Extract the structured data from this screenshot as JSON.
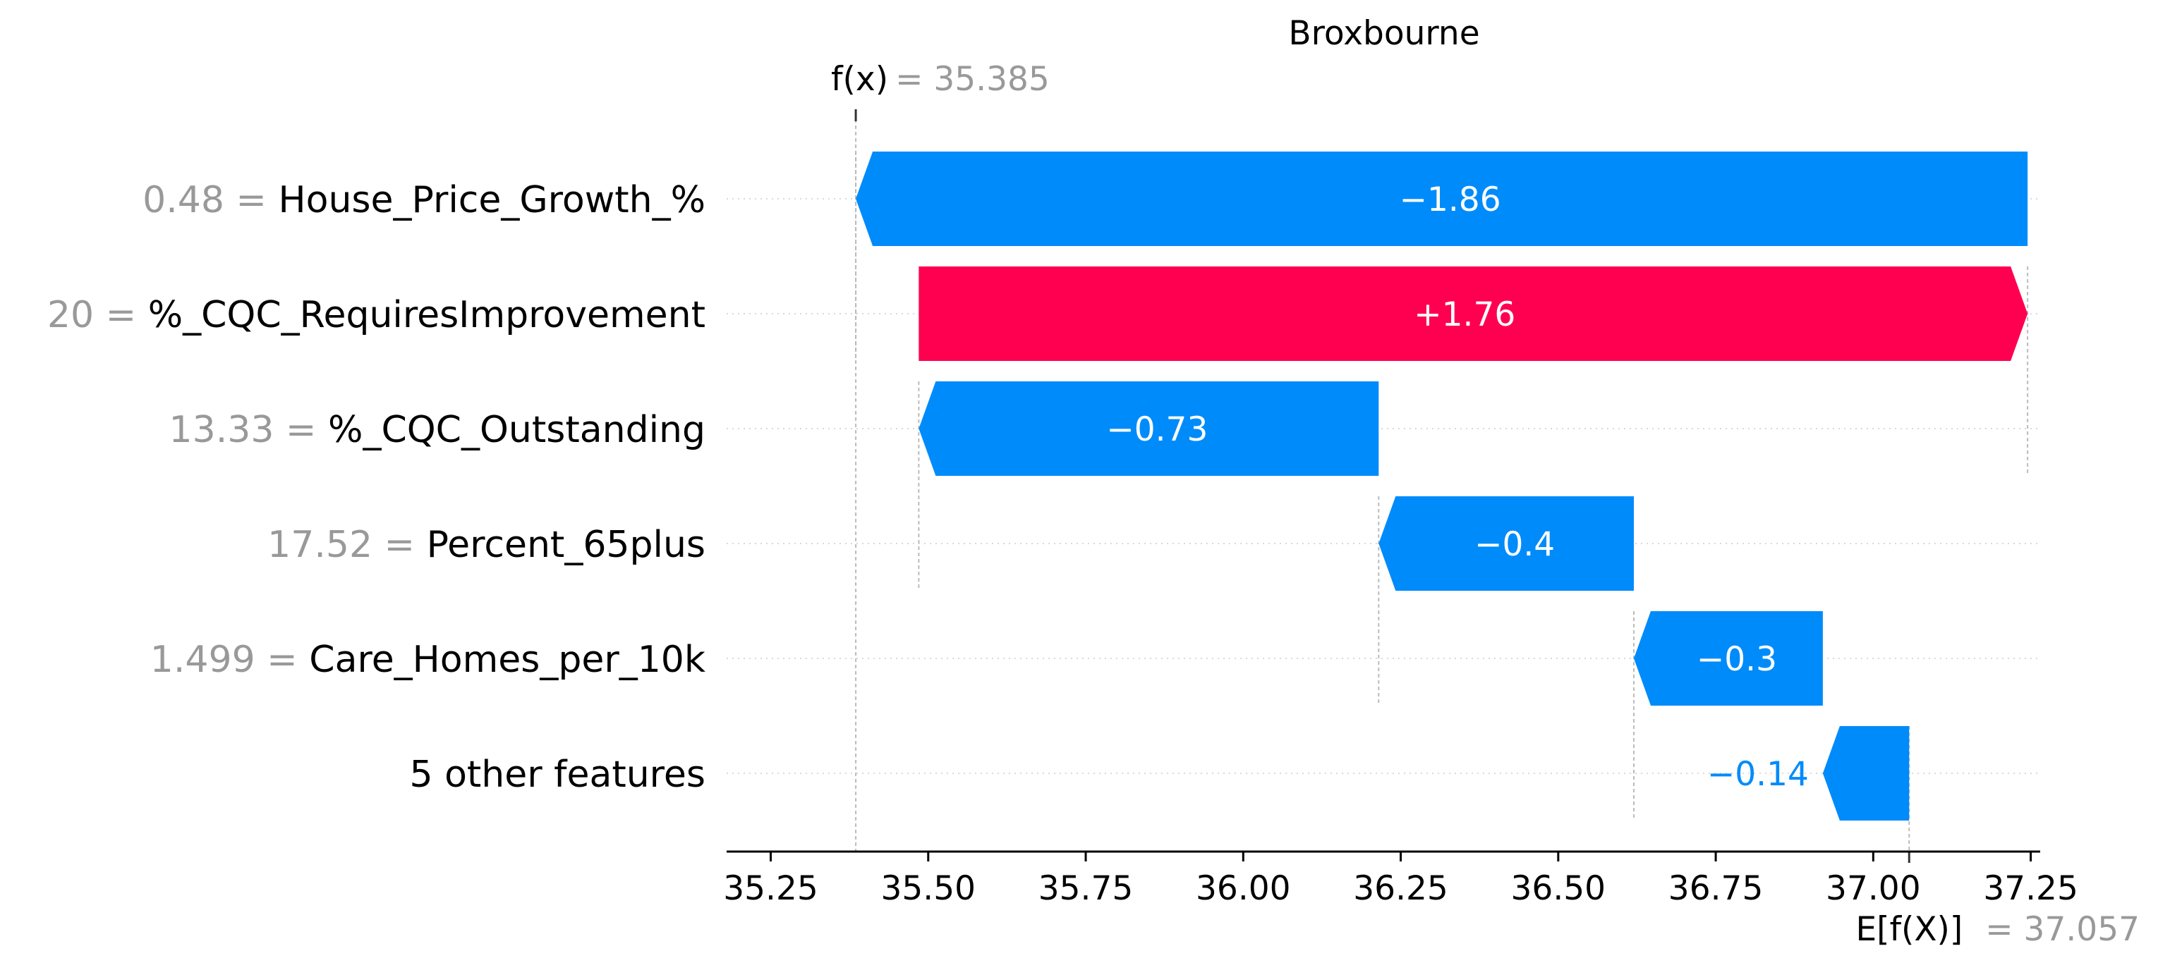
{
  "chart_data": {
    "type": "waterfall",
    "title": "Broxbourne",
    "fx_label": "f(x)",
    "fx_value": 35.385,
    "fx_value_text": "= 35.385",
    "efx_label": "E[f(X)]",
    "base_value": 37.057,
    "base_value_text": "= 37.057",
    "xlim": [
      35.18,
      37.265
    ],
    "xticks": [
      35.25,
      35.5,
      35.75,
      36.0,
      36.25,
      36.5,
      36.75,
      37.0,
      37.25
    ],
    "xtick_labels": [
      "35.25",
      "35.50",
      "35.75",
      "36.00",
      "36.25",
      "36.50",
      "36.75",
      "37.00",
      "37.25"
    ],
    "features": [
      {
        "value_text": "0.48",
        "name": "House_Price_Growth_%",
        "contribution": -1.86,
        "label": "−1.86",
        "start": 37.245,
        "end": 35.385
      },
      {
        "value_text": "20",
        "name": "%_CQC_RequiresImprovement",
        "contribution": 1.76,
        "label": "+1.76",
        "start": 35.485,
        "end": 37.245
      },
      {
        "value_text": "13.33",
        "name": "%_CQC_Outstanding",
        "contribution": -0.73,
        "label": "−0.73",
        "start": 36.215,
        "end": 35.485
      },
      {
        "value_text": "17.52",
        "name": "Percent_65plus",
        "contribution": -0.4,
        "label": "−0.4",
        "start": 36.62,
        "end": 36.215
      },
      {
        "value_text": "1.499",
        "name": "Care_Homes_per_10k",
        "contribution": -0.3,
        "label": "−0.3",
        "start": 36.92,
        "end": 36.62
      },
      {
        "value_text": "",
        "name": "5 other features",
        "contribution": -0.14,
        "label": "−0.14",
        "start": 37.057,
        "end": 36.92
      }
    ],
    "colors": {
      "positive": "#ff0051",
      "negative": "#008bfb",
      "value_text": "#999999",
      "grid": "#cccccc"
    }
  }
}
